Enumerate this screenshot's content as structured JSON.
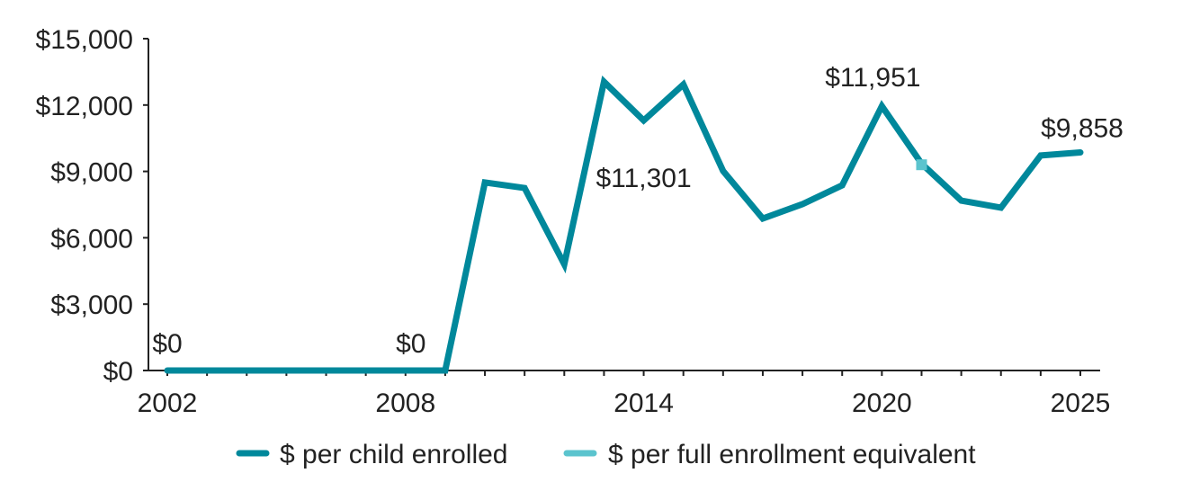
{
  "chart_data": {
    "type": "line",
    "title": "",
    "xlabel": "",
    "ylabel": "",
    "ylim": [
      0,
      15000
    ],
    "yticks": [
      0,
      3000,
      6000,
      9000,
      12000,
      15000
    ],
    "ytick_labels": [
      "$0",
      "$3,000",
      "$6,000",
      "$9,000",
      "$12,000",
      "$15,000"
    ],
    "xlim": [
      2002,
      2025
    ],
    "xticks": [
      2002,
      2008,
      2014,
      2020,
      2025
    ],
    "xtick_labels": [
      "2002",
      "2008",
      "2014",
      "2020",
      "2025"
    ],
    "grid": false,
    "legend_position": "bottom",
    "colors": {
      "per_child": "#00889B",
      "per_fee": "#5BC4CE",
      "axis": "#222222"
    },
    "series": [
      {
        "name": "$ per child enrolled",
        "x": [
          2002,
          2003,
          2004,
          2005,
          2006,
          2007,
          2008,
          2009,
          2010,
          2011,
          2012,
          2013,
          2014,
          2015,
          2016,
          2017,
          2018,
          2019,
          2020,
          2021,
          2022,
          2023,
          2024,
          2025
        ],
        "values": [
          0,
          0,
          0,
          0,
          0,
          0,
          0,
          0,
          8500,
          8250,
          4800,
          13050,
          11301,
          12930,
          9020,
          6870,
          7520,
          8370,
          11951,
          9350,
          7680,
          7360,
          9720,
          9858
        ]
      },
      {
        "name": "$ per full enrollment equivalent",
        "x": [
          2021
        ],
        "values": [
          9300
        ]
      }
    ],
    "annotations": [
      {
        "text": "$0",
        "x": 2002,
        "y": 0
      },
      {
        "text": "$0",
        "x": 2008,
        "y": 0
      },
      {
        "text": "$11,301",
        "x": 2014,
        "y": 11301
      },
      {
        "text": "$11,951",
        "x": 2020,
        "y": 11951
      },
      {
        "text": "$9,858",
        "x": 2025,
        "y": 9858
      }
    ]
  }
}
